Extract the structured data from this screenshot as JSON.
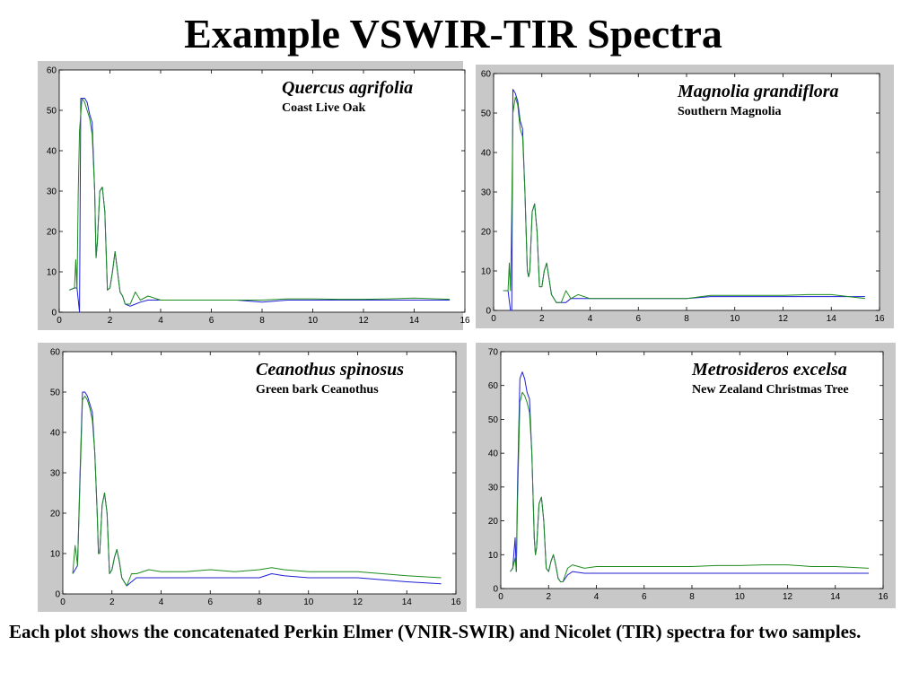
{
  "page": {
    "title": "Example VSWIR-TIR Spectra",
    "caption": "Each plot shows the concatenated Perkin Elmer (VNIR-SWIR) and Nicolet (TIR) spectra for two samples."
  },
  "chart_data": [
    {
      "type": "line",
      "species": "Quercus agrifolia",
      "common_name": "Coast Live Oak",
      "xlim": [
        0,
        16
      ],
      "ylim": [
        0,
        60
      ],
      "xticks": [
        0,
        2,
        4,
        6,
        8,
        10,
        12,
        14,
        16
      ],
      "yticks": [
        0,
        10,
        20,
        30,
        40,
        50,
        60
      ],
      "series": [
        {
          "color": "#1f1fd6",
          "x": [
            0.4,
            0.6,
            0.7,
            0.8,
            0.85,
            0.9,
            1.0,
            1.1,
            1.2,
            1.3,
            1.4,
            1.45,
            1.5,
            1.6,
            1.7,
            1.8,
            1.9,
            2.0,
            2.1,
            2.2,
            2.3,
            2.4,
            2.5,
            2.6,
            2.8,
            3.0,
            3.2,
            3.5,
            4.0,
            5,
            6,
            7,
            8,
            9,
            10,
            11,
            12,
            13,
            14,
            15.4
          ],
          "y": [
            5.5,
            6,
            6,
            0,
            53,
            53,
            53,
            52,
            49,
            47,
            30,
            13.5,
            17,
            30,
            31,
            25,
            5.5,
            6,
            10,
            15,
            10,
            5,
            4,
            2,
            1.5,
            2,
            2.5,
            3,
            3,
            3,
            3,
            3,
            2.5,
            3,
            3,
            3,
            3,
            3,
            3,
            3
          ]
        },
        {
          "color": "#1e8c1e",
          "x": [
            0.4,
            0.6,
            0.65,
            0.7,
            0.75,
            0.8,
            0.9,
            1.0,
            1.1,
            1.2,
            1.3,
            1.4,
            1.45,
            1.5,
            1.6,
            1.7,
            1.8,
            1.9,
            2.0,
            2.1,
            2.2,
            2.3,
            2.4,
            2.5,
            2.6,
            2.8,
            3.0,
            3.2,
            3.5,
            4.0,
            5,
            6,
            7,
            8,
            9,
            10,
            11,
            12,
            13,
            14,
            15.4
          ],
          "y": [
            5.5,
            6,
            13,
            5.5,
            30,
            45,
            53,
            52,
            50,
            48,
            44,
            30,
            13.5,
            17,
            30,
            31,
            25,
            5.5,
            6,
            10,
            15,
            10,
            5,
            4,
            2,
            2,
            5,
            3,
            4,
            3,
            3,
            3,
            3,
            3,
            3.3,
            3.3,
            3.2,
            3.2,
            3.3,
            3.5,
            3.2
          ]
        }
      ]
    },
    {
      "type": "line",
      "species": "Magnolia grandiflora",
      "common_name": "Southern Magnolia",
      "xlim": [
        0,
        16
      ],
      "ylim": [
        0,
        60
      ],
      "xticks": [
        0,
        2,
        4,
        6,
        8,
        10,
        12,
        14,
        16
      ],
      "yticks": [
        0,
        10,
        20,
        30,
        40,
        50,
        60
      ],
      "series": [
        {
          "color": "#1f1fd6",
          "x": [
            0.4,
            0.6,
            0.7,
            0.75,
            0.8,
            0.9,
            1.0,
            1.1,
            1.2,
            1.3,
            1.4,
            1.45,
            1.5,
            1.6,
            1.7,
            1.8,
            1.9,
            2.0,
            2.1,
            2.2,
            2.3,
            2.4,
            2.5,
            2.6,
            2.8,
            3.0,
            3.2,
            3.5,
            4.0,
            5,
            6,
            7,
            8,
            9,
            10,
            11,
            12,
            13,
            14,
            15.4
          ],
          "y": [
            5,
            5,
            0,
            0,
            56,
            55,
            53,
            48,
            46,
            30,
            10,
            8.5,
            10,
            25,
            27,
            20,
            6,
            6,
            10,
            12,
            8,
            4,
            3,
            2,
            2,
            2,
            3,
            3,
            3,
            3,
            3,
            3,
            3,
            3.5,
            3.5,
            3.5,
            3.5,
            3.5,
            3.5,
            3.5
          ]
        },
        {
          "color": "#1e8c1e",
          "x": [
            0.4,
            0.6,
            0.65,
            0.7,
            0.75,
            0.8,
            0.9,
            1.0,
            1.1,
            1.2,
            1.3,
            1.4,
            1.45,
            1.5,
            1.6,
            1.7,
            1.8,
            1.9,
            2.0,
            2.1,
            2.2,
            2.3,
            2.4,
            2.5,
            2.6,
            2.8,
            3.0,
            3.2,
            3.5,
            4.0,
            5,
            6,
            7,
            8,
            9,
            10,
            11,
            12,
            13,
            14,
            15.4
          ],
          "y": [
            5,
            5,
            12,
            5,
            25,
            50,
            54,
            52,
            46,
            44,
            30,
            10,
            8.5,
            10,
            25,
            27,
            20,
            6,
            6,
            10,
            12,
            8,
            4,
            3,
            2,
            2,
            5,
            3,
            4,
            3,
            3,
            3,
            3,
            3,
            3.8,
            3.8,
            3.8,
            3.8,
            4,
            4,
            3
          ]
        }
      ]
    },
    {
      "type": "line",
      "species": "Ceanothus spinosus",
      "common_name": "Green bark Ceanothus",
      "xlim": [
        0,
        16
      ],
      "ylim": [
        0,
        60
      ],
      "xticks": [
        0,
        2,
        4,
        6,
        8,
        10,
        12,
        14,
        16
      ],
      "yticks": [
        0,
        10,
        20,
        30,
        40,
        50,
        60
      ],
      "series": [
        {
          "color": "#1f1fd6",
          "x": [
            0.4,
            0.5,
            0.6,
            0.7,
            0.8,
            0.9,
            1.0,
            1.1,
            1.2,
            1.3,
            1.4,
            1.45,
            1.5,
            1.6,
            1.7,
            1.8,
            1.9,
            2.0,
            2.1,
            2.2,
            2.3,
            2.4,
            2.5,
            2.6,
            2.8,
            3.0,
            3.5,
            4.0,
            5,
            6,
            7,
            8,
            8.5,
            9,
            10,
            11,
            12,
            13,
            14,
            15.4
          ],
          "y": [
            5,
            6,
            7,
            30,
            50,
            50,
            49,
            47,
            45,
            35,
            20,
            10,
            10,
            22,
            25,
            20,
            5,
            6,
            9,
            11,
            8,
            4,
            3,
            2,
            3,
            4,
            4,
            4,
            4,
            4,
            4,
            4,
            5,
            4.5,
            4,
            4,
            4,
            3.5,
            3,
            2.5
          ]
        },
        {
          "color": "#1e8c1e",
          "x": [
            0.4,
            0.5,
            0.6,
            0.7,
            0.8,
            0.9,
            1.0,
            1.1,
            1.2,
            1.3,
            1.4,
            1.45,
            1.5,
            1.6,
            1.7,
            1.8,
            1.9,
            2.0,
            2.1,
            2.2,
            2.3,
            2.4,
            2.5,
            2.6,
            2.8,
            3.0,
            3.5,
            4.0,
            5,
            6,
            7,
            8,
            8.5,
            9,
            10,
            11,
            12,
            13,
            14,
            15.4
          ],
          "y": [
            5,
            12,
            7,
            28,
            48,
            49,
            48,
            46,
            43,
            35,
            20,
            10,
            10,
            22,
            25,
            20,
            5,
            6,
            9,
            11,
            8,
            4,
            3,
            2,
            5,
            5,
            6,
            5.5,
            5.5,
            6,
            5.5,
            6,
            6.5,
            6,
            5.5,
            5.5,
            5.5,
            5,
            4.5,
            4
          ]
        }
      ]
    },
    {
      "type": "line",
      "species": "Metrosideros excelsa",
      "common_name": "New Zealand Christmas Tree",
      "xlim": [
        0,
        16
      ],
      "ylim": [
        0,
        70
      ],
      "xticks": [
        0,
        2,
        4,
        6,
        8,
        10,
        12,
        14,
        16
      ],
      "yticks": [
        0,
        10,
        20,
        30,
        40,
        50,
        60,
        70
      ],
      "series": [
        {
          "color": "#1f1fd6",
          "x": [
            0.4,
            0.5,
            0.6,
            0.65,
            0.7,
            0.8,
            0.9,
            1.0,
            1.1,
            1.2,
            1.3,
            1.4,
            1.45,
            1.5,
            1.6,
            1.7,
            1.8,
            1.9,
            2.0,
            2.1,
            2.2,
            2.3,
            2.4,
            2.5,
            2.6,
            2.8,
            3.0,
            3.5,
            4.0,
            5,
            6,
            7,
            8,
            9,
            10,
            11,
            12,
            13,
            14,
            15.4
          ],
          "y": [
            5,
            6,
            15,
            5,
            30,
            62,
            64,
            62,
            58,
            56,
            40,
            15,
            10,
            12,
            25,
            27,
            20,
            6,
            5,
            8,
            10,
            7,
            3,
            2,
            2,
            4,
            5,
            4.5,
            4.5,
            4.5,
            4.5,
            4.5,
            4.5,
            4.5,
            4.5,
            4.5,
            4.5,
            4.5,
            4.5,
            4.5
          ]
        },
        {
          "color": "#1e8c1e",
          "x": [
            0.4,
            0.5,
            0.6,
            0.65,
            0.7,
            0.8,
            0.9,
            1.0,
            1.1,
            1.2,
            1.3,
            1.4,
            1.45,
            1.5,
            1.6,
            1.7,
            1.8,
            1.9,
            2.0,
            2.1,
            2.2,
            2.3,
            2.4,
            2.5,
            2.6,
            2.8,
            3.0,
            3.5,
            4.0,
            5,
            6,
            7,
            8,
            9,
            10,
            11,
            12,
            13,
            14,
            15.4
          ],
          "y": [
            5,
            6,
            9,
            5,
            25,
            55,
            58,
            57,
            55,
            52,
            40,
            15,
            10,
            12,
            25,
            27,
            20,
            6,
            5,
            8,
            10,
            7,
            3,
            2,
            2,
            6,
            7,
            6,
            6.5,
            6.5,
            6.5,
            6.5,
            6.5,
            6.8,
            6.8,
            7,
            7,
            6.5,
            6.5,
            6
          ]
        }
      ]
    }
  ]
}
